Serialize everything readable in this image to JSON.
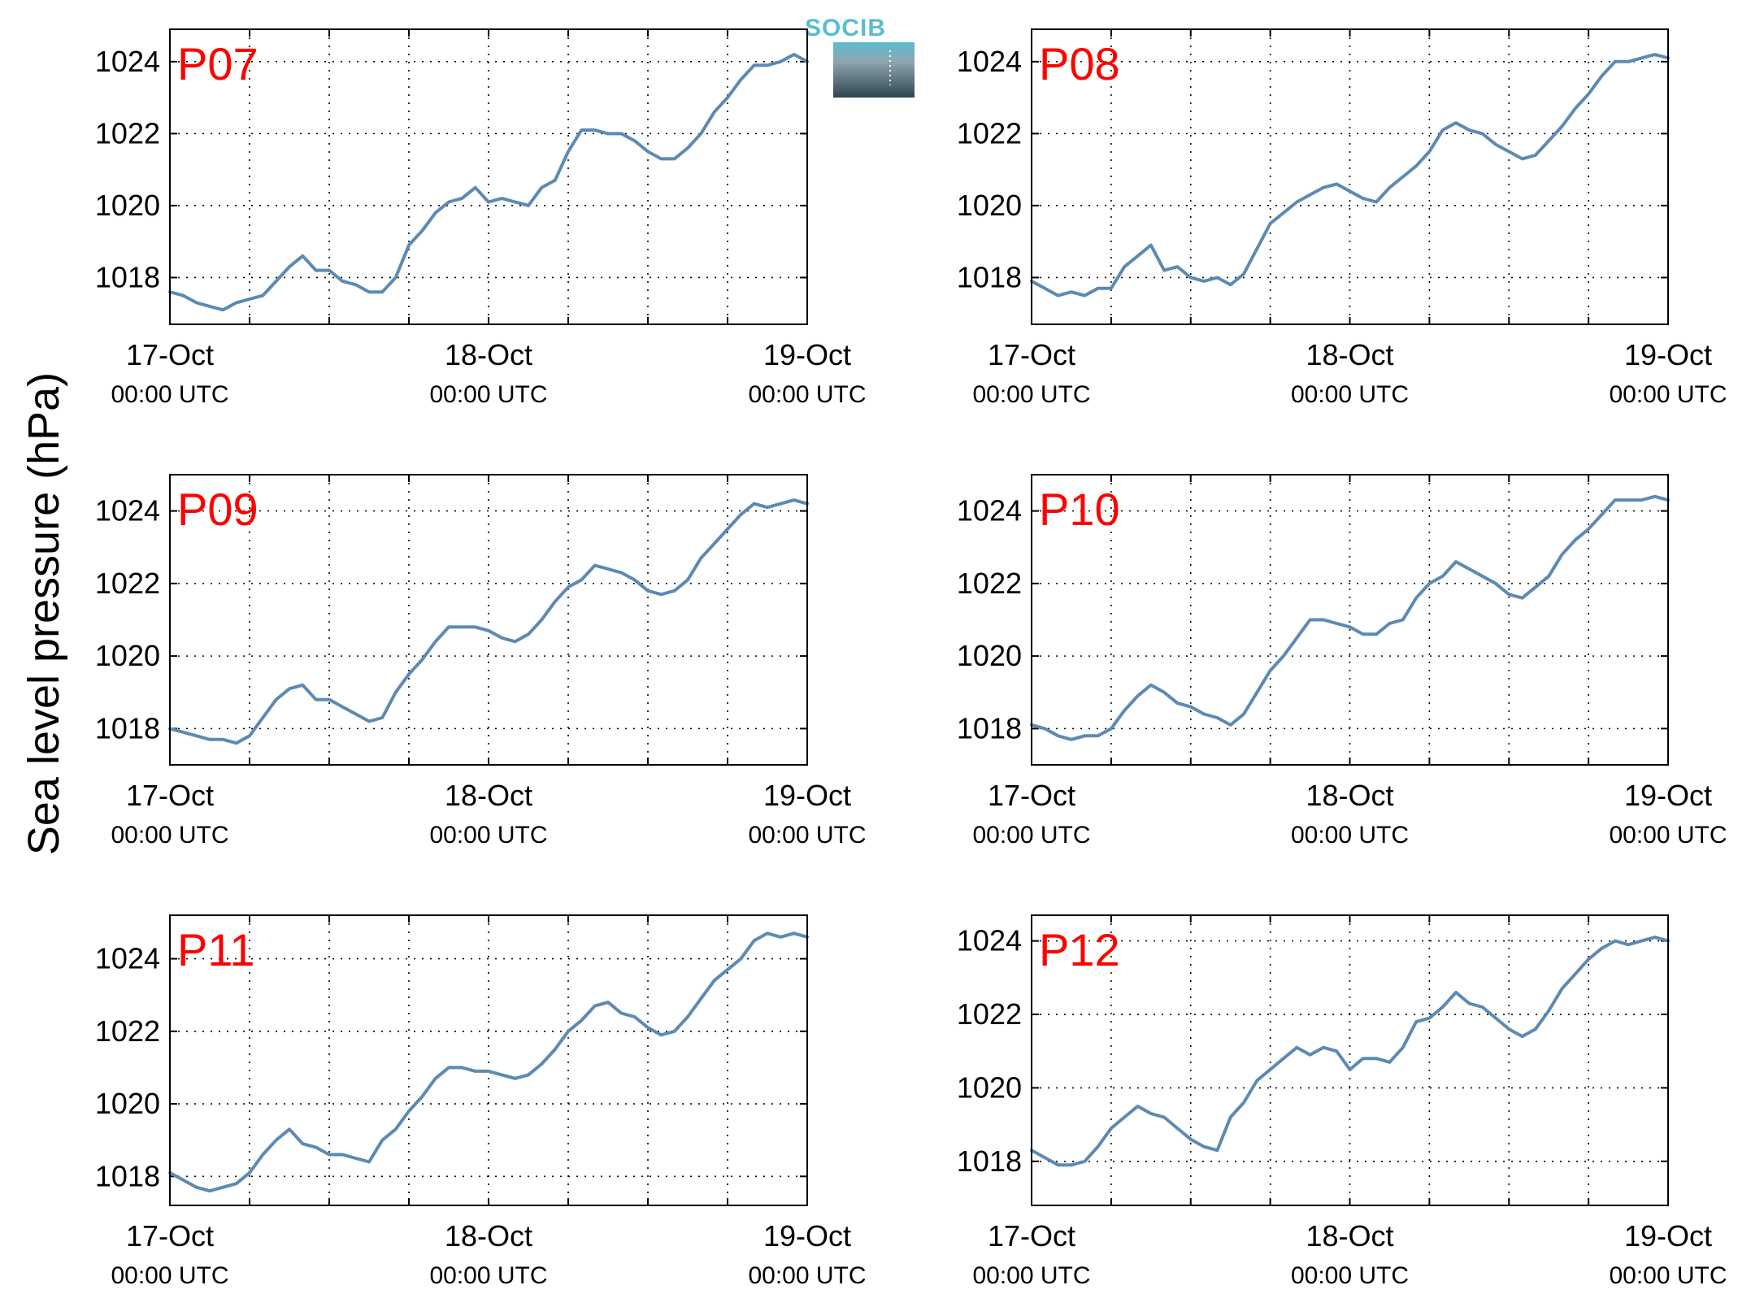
{
  "figure": {
    "ylabel": "Sea level pressure (hPa)",
    "logo_text": "SOCIB",
    "colors": {
      "line": "#5d8ab3",
      "station_label": "#ff0000",
      "logo_teal": "#5bbccf",
      "logo_dark": "#2f4550"
    }
  },
  "chart_data": [
    {
      "type": "line",
      "title": "P07",
      "xlabel": "",
      "ylabel": "",
      "xlim": [
        0,
        48
      ],
      "ylim": [
        1016.7,
        1024.9
      ],
      "yticks": [
        1018,
        1020,
        1022,
        1024
      ],
      "xticks": [
        {
          "x": 0,
          "date": "17-Oct",
          "time": "00:00 UTC"
        },
        {
          "x": 24,
          "date": "18-Oct",
          "time": "00:00 UTC"
        },
        {
          "x": 48,
          "date": "19-Oct",
          "time": "00:00 UTC"
        }
      ],
      "grid": true,
      "legend": "none",
      "series": [
        {
          "x": [
            0,
            1,
            2,
            3,
            4,
            5,
            6,
            7,
            8,
            9,
            10,
            11,
            12,
            13,
            14,
            15,
            16,
            17,
            18,
            19,
            20,
            21,
            22,
            23,
            24,
            25,
            26,
            27,
            28,
            29,
            30,
            31,
            32,
            33,
            34,
            35,
            36,
            37,
            38,
            39,
            40,
            41,
            42,
            43,
            44,
            45,
            46,
            47,
            48
          ],
          "values": [
            1017.6,
            1017.5,
            1017.3,
            1017.2,
            1017.1,
            1017.3,
            1017.4,
            1017.5,
            1017.9,
            1018.3,
            1018.6,
            1018.2,
            1018.2,
            1017.9,
            1017.8,
            1017.6,
            1017.6,
            1018.0,
            1018.9,
            1019.3,
            1019.8,
            1020.1,
            1020.2,
            1020.5,
            1020.1,
            1020.2,
            1020.1,
            1020.0,
            1020.5,
            1020.7,
            1021.5,
            1022.1,
            1022.1,
            1022.0,
            1022.0,
            1021.8,
            1021.5,
            1021.3,
            1021.3,
            1021.6,
            1022.0,
            1022.6,
            1023.0,
            1023.5,
            1023.9,
            1023.9,
            1024.0,
            1024.2,
            1024.0
          ]
        }
      ]
    },
    {
      "type": "line",
      "title": "P08",
      "xlabel": "",
      "ylabel": "",
      "xlim": [
        0,
        48
      ],
      "ylim": [
        1016.7,
        1024.9
      ],
      "yticks": [
        1018,
        1020,
        1022,
        1024
      ],
      "xticks": [
        {
          "x": 0,
          "date": "17-Oct",
          "time": "00:00 UTC"
        },
        {
          "x": 24,
          "date": "18-Oct",
          "time": "00:00 UTC"
        },
        {
          "x": 48,
          "date": "19-Oct",
          "time": "00:00 UTC"
        }
      ],
      "grid": true,
      "legend": "none",
      "series": [
        {
          "x": [
            0,
            1,
            2,
            3,
            4,
            5,
            6,
            7,
            8,
            9,
            10,
            11,
            12,
            13,
            14,
            15,
            16,
            17,
            18,
            19,
            20,
            21,
            22,
            23,
            24,
            25,
            26,
            27,
            28,
            29,
            30,
            31,
            32,
            33,
            34,
            35,
            36,
            37,
            38,
            39,
            40,
            41,
            42,
            43,
            44,
            45,
            46,
            47,
            48
          ],
          "values": [
            1017.9,
            1017.7,
            1017.5,
            1017.6,
            1017.5,
            1017.7,
            1017.7,
            1018.3,
            1018.6,
            1018.9,
            1018.2,
            1018.3,
            1018.0,
            1017.9,
            1018.0,
            1017.8,
            1018.1,
            1018.8,
            1019.5,
            1019.8,
            1020.1,
            1020.3,
            1020.5,
            1020.6,
            1020.4,
            1020.2,
            1020.1,
            1020.5,
            1020.8,
            1021.1,
            1021.5,
            1022.1,
            1022.3,
            1022.1,
            1022.0,
            1021.7,
            1021.5,
            1021.3,
            1021.4,
            1021.8,
            1022.2,
            1022.7,
            1023.1,
            1023.6,
            1024.0,
            1024.0,
            1024.1,
            1024.2,
            1024.1
          ]
        }
      ]
    },
    {
      "type": "line",
      "title": "P09",
      "xlabel": "",
      "ylabel": "",
      "xlim": [
        0,
        48
      ],
      "ylim": [
        1017.0,
        1025.0
      ],
      "yticks": [
        1018,
        1020,
        1022,
        1024
      ],
      "xticks": [
        {
          "x": 0,
          "date": "17-Oct",
          "time": "00:00 UTC"
        },
        {
          "x": 24,
          "date": "18-Oct",
          "time": "00:00 UTC"
        },
        {
          "x": 48,
          "date": "19-Oct",
          "time": "00:00 UTC"
        }
      ],
      "grid": true,
      "legend": "none",
      "series": [
        {
          "x": [
            0,
            1,
            2,
            3,
            4,
            5,
            6,
            7,
            8,
            9,
            10,
            11,
            12,
            13,
            14,
            15,
            16,
            17,
            18,
            19,
            20,
            21,
            22,
            23,
            24,
            25,
            26,
            27,
            28,
            29,
            30,
            31,
            32,
            33,
            34,
            35,
            36,
            37,
            38,
            39,
            40,
            41,
            42,
            43,
            44,
            45,
            46,
            47,
            48
          ],
          "values": [
            1018.0,
            1017.9,
            1017.8,
            1017.7,
            1017.7,
            1017.6,
            1017.8,
            1018.3,
            1018.8,
            1019.1,
            1019.2,
            1018.8,
            1018.8,
            1018.6,
            1018.4,
            1018.2,
            1018.3,
            1019.0,
            1019.5,
            1019.9,
            1020.4,
            1020.8,
            1020.8,
            1020.8,
            1020.7,
            1020.5,
            1020.4,
            1020.6,
            1021.0,
            1021.5,
            1021.9,
            1022.1,
            1022.5,
            1022.4,
            1022.3,
            1022.1,
            1021.8,
            1021.7,
            1021.8,
            1022.1,
            1022.7,
            1023.1,
            1023.5,
            1023.9,
            1024.2,
            1024.1,
            1024.2,
            1024.3,
            1024.2
          ]
        }
      ]
    },
    {
      "type": "line",
      "title": "P10",
      "xlabel": "",
      "ylabel": "",
      "xlim": [
        0,
        48
      ],
      "ylim": [
        1017.0,
        1025.0
      ],
      "yticks": [
        1018,
        1020,
        1022,
        1024
      ],
      "xticks": [
        {
          "x": 0,
          "date": "17-Oct",
          "time": "00:00 UTC"
        },
        {
          "x": 24,
          "date": "18-Oct",
          "time": "00:00 UTC"
        },
        {
          "x": 48,
          "date": "19-Oct",
          "time": "00:00 UTC"
        }
      ],
      "grid": true,
      "legend": "none",
      "series": [
        {
          "x": [
            0,
            1,
            2,
            3,
            4,
            5,
            6,
            7,
            8,
            9,
            10,
            11,
            12,
            13,
            14,
            15,
            16,
            17,
            18,
            19,
            20,
            21,
            22,
            23,
            24,
            25,
            26,
            27,
            28,
            29,
            30,
            31,
            32,
            33,
            34,
            35,
            36,
            37,
            38,
            39,
            40,
            41,
            42,
            43,
            44,
            45,
            46,
            47,
            48
          ],
          "values": [
            1018.1,
            1018.0,
            1017.8,
            1017.7,
            1017.8,
            1017.8,
            1018.0,
            1018.5,
            1018.9,
            1019.2,
            1019.0,
            1018.7,
            1018.6,
            1018.4,
            1018.3,
            1018.1,
            1018.4,
            1019.0,
            1019.6,
            1020.0,
            1020.5,
            1021.0,
            1021.0,
            1020.9,
            1020.8,
            1020.6,
            1020.6,
            1020.9,
            1021.0,
            1021.6,
            1022.0,
            1022.2,
            1022.6,
            1022.4,
            1022.2,
            1022.0,
            1021.7,
            1021.6,
            1021.9,
            1022.2,
            1022.8,
            1023.2,
            1023.5,
            1023.9,
            1024.3,
            1024.3,
            1024.3,
            1024.4,
            1024.3
          ]
        }
      ]
    },
    {
      "type": "line",
      "title": "P11",
      "xlabel": "",
      "ylabel": "",
      "xlim": [
        0,
        48
      ],
      "ylim": [
        1017.2,
        1025.2
      ],
      "yticks": [
        1018,
        1020,
        1022,
        1024
      ],
      "xticks": [
        {
          "x": 0,
          "date": "17-Oct",
          "time": "00:00 UTC"
        },
        {
          "x": 24,
          "date": "18-Oct",
          "time": "00:00 UTC"
        },
        {
          "x": 48,
          "date": "19-Oct",
          "time": "00:00 UTC"
        }
      ],
      "grid": true,
      "legend": "none",
      "series": [
        {
          "x": [
            0,
            1,
            2,
            3,
            4,
            5,
            6,
            7,
            8,
            9,
            10,
            11,
            12,
            13,
            14,
            15,
            16,
            17,
            18,
            19,
            20,
            21,
            22,
            23,
            24,
            25,
            26,
            27,
            28,
            29,
            30,
            31,
            32,
            33,
            34,
            35,
            36,
            37,
            38,
            39,
            40,
            41,
            42,
            43,
            44,
            45,
            46,
            47,
            48
          ],
          "values": [
            1018.1,
            1017.9,
            1017.7,
            1017.6,
            1017.7,
            1017.8,
            1018.1,
            1018.6,
            1019.0,
            1019.3,
            1018.9,
            1018.8,
            1018.6,
            1018.6,
            1018.5,
            1018.4,
            1019.0,
            1019.3,
            1019.8,
            1020.2,
            1020.7,
            1021.0,
            1021.0,
            1020.9,
            1020.9,
            1020.8,
            1020.7,
            1020.8,
            1021.1,
            1021.5,
            1022.0,
            1022.3,
            1022.7,
            1022.8,
            1022.5,
            1022.4,
            1022.1,
            1021.9,
            1022.0,
            1022.4,
            1022.9,
            1023.4,
            1023.7,
            1024.0,
            1024.5,
            1024.7,
            1024.6,
            1024.7,
            1024.6
          ]
        }
      ]
    },
    {
      "type": "line",
      "title": "P12",
      "xlabel": "",
      "ylabel": "",
      "xlim": [
        0,
        48
      ],
      "ylim": [
        1016.8,
        1024.7
      ],
      "yticks": [
        1018,
        1020,
        1022,
        1024
      ],
      "xticks": [
        {
          "x": 0,
          "date": "17-Oct",
          "time": "00:00 UTC"
        },
        {
          "x": 24,
          "date": "18-Oct",
          "time": "00:00 UTC"
        },
        {
          "x": 48,
          "date": "19-Oct",
          "time": "00:00 UTC"
        }
      ],
      "grid": true,
      "legend": "none",
      "series": [
        {
          "x": [
            0,
            1,
            2,
            3,
            4,
            5,
            6,
            7,
            8,
            9,
            10,
            11,
            12,
            13,
            14,
            15,
            16,
            17,
            18,
            19,
            20,
            21,
            22,
            23,
            24,
            25,
            26,
            27,
            28,
            29,
            30,
            31,
            32,
            33,
            34,
            35,
            36,
            37,
            38,
            39,
            40,
            41,
            42,
            43,
            44,
            45,
            46,
            47,
            48
          ],
          "values": [
            1018.3,
            1018.1,
            1017.9,
            1017.9,
            1018.0,
            1018.4,
            1018.9,
            1019.2,
            1019.5,
            1019.3,
            1019.2,
            1018.9,
            1018.6,
            1018.4,
            1018.3,
            1019.2,
            1019.6,
            1020.2,
            1020.5,
            1020.8,
            1021.1,
            1020.9,
            1021.1,
            1021.0,
            1020.5,
            1020.8,
            1020.8,
            1020.7,
            1021.1,
            1021.8,
            1021.9,
            1022.2,
            1022.6,
            1022.3,
            1022.2,
            1021.9,
            1021.6,
            1021.4,
            1021.6,
            1022.1,
            1022.7,
            1023.1,
            1023.5,
            1023.8,
            1024.0,
            1023.9,
            1024.0,
            1024.1,
            1024.0
          ]
        }
      ]
    }
  ]
}
